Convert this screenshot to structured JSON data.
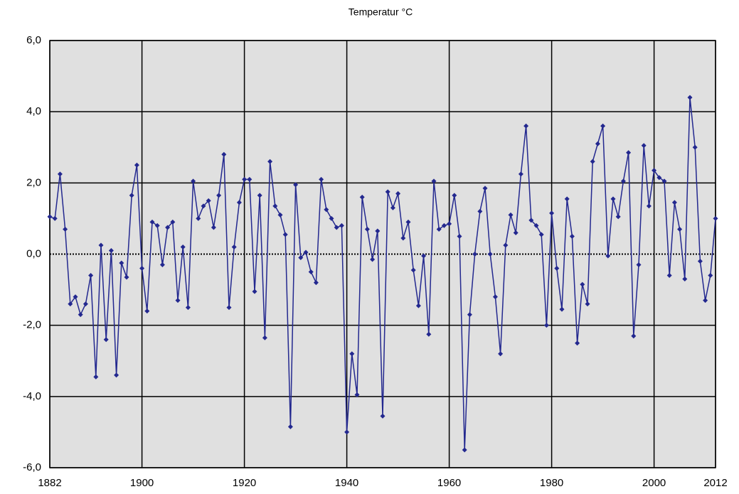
{
  "chart_data": {
    "type": "line",
    "title": "Temperatur °C",
    "x": [
      1882,
      1883,
      1884,
      1885,
      1886,
      1887,
      1888,
      1889,
      1890,
      1891,
      1892,
      1893,
      1894,
      1895,
      1896,
      1897,
      1898,
      1899,
      1900,
      1901,
      1902,
      1903,
      1904,
      1905,
      1906,
      1907,
      1908,
      1909,
      1910,
      1911,
      1912,
      1913,
      1914,
      1915,
      1916,
      1917,
      1918,
      1919,
      1920,
      1921,
      1922,
      1923,
      1924,
      1925,
      1926,
      1927,
      1928,
      1929,
      1930,
      1931,
      1932,
      1933,
      1934,
      1935,
      1936,
      1937,
      1938,
      1939,
      1940,
      1941,
      1942,
      1943,
      1944,
      1945,
      1946,
      1947,
      1948,
      1949,
      1950,
      1951,
      1952,
      1953,
      1954,
      1955,
      1956,
      1957,
      1958,
      1959,
      1960,
      1961,
      1962,
      1963,
      1964,
      1965,
      1966,
      1967,
      1968,
      1969,
      1970,
      1971,
      1972,
      1973,
      1974,
      1975,
      1976,
      1977,
      1978,
      1979,
      1980,
      1981,
      1982,
      1983,
      1984,
      1985,
      1986,
      1987,
      1988,
      1989,
      1990,
      1991,
      1992,
      1993,
      1994,
      1995,
      1996,
      1997,
      1998,
      1999,
      2000,
      2001,
      2002,
      2003,
      2004,
      2005,
      2006,
      2007,
      2008,
      2009,
      2010,
      2011,
      2012
    ],
    "values": [
      1.05,
      1.0,
      2.25,
      0.7,
      -1.4,
      -1.2,
      -1.7,
      -1.4,
      -0.6,
      -3.45,
      0.25,
      -2.4,
      0.1,
      -3.4,
      -0.25,
      -0.65,
      1.65,
      2.5,
      -0.4,
      -1.6,
      0.9,
      0.8,
      -0.3,
      0.75,
      0.9,
      -1.3,
      0.2,
      -1.5,
      2.05,
      1.0,
      1.35,
      1.5,
      0.75,
      1.65,
      2.8,
      -1.5,
      0.2,
      1.45,
      2.1,
      2.1,
      -1.05,
      1.65,
      -2.35,
      2.6,
      1.35,
      1.1,
      0.55,
      -4.85,
      1.95,
      -0.1,
      0.05,
      -0.5,
      -0.8,
      2.1,
      1.25,
      1.0,
      0.75,
      0.8,
      -5.0,
      -2.8,
      -3.95,
      1.6,
      0.7,
      -0.15,
      0.65,
      -4.55,
      1.75,
      1.3,
      1.7,
      0.45,
      0.9,
      -0.45,
      -1.45,
      -0.05,
      -2.25,
      2.05,
      0.7,
      0.8,
      0.85,
      1.65,
      0.5,
      -5.5,
      -1.7,
      0.0,
      1.2,
      1.85,
      0.0,
      -1.2,
      -2.8,
      0.25,
      1.1,
      0.6,
      2.25,
      3.6,
      0.95,
      0.8,
      0.55,
      -2.0,
      1.15,
      -0.4,
      -1.55,
      1.55,
      0.5,
      -2.5,
      -0.85,
      -1.4,
      2.6,
      3.1,
      3.6,
      -0.05,
      1.55,
      1.05,
      2.05,
      2.85,
      -2.3,
      -0.3,
      3.05,
      1.35,
      2.35,
      2.15,
      2.05,
      -0.6,
      1.45,
      0.7,
      -0.7,
      4.4,
      3.0,
      -0.2,
      -1.3,
      -0.6,
      1.0
    ],
    "color": "#23288f",
    "xlim": [
      1882,
      2012
    ],
    "xticks": [
      1882,
      1900,
      1920,
      1940,
      1960,
      1980,
      2000,
      2012
    ],
    "ylim": [
      -6,
      6
    ],
    "yticks": [
      {
        "value": -6,
        "label": "-6,0"
      },
      {
        "value": -4,
        "label": "-4,0"
      },
      {
        "value": -2,
        "label": "-2,0"
      },
      {
        "value": 0,
        "label": "0,0"
      },
      {
        "value": 2,
        "label": "2,0"
      },
      {
        "value": 4,
        "label": "4,0"
      },
      {
        "value": 6,
        "label": "6,0"
      }
    ],
    "grid": true
  }
}
